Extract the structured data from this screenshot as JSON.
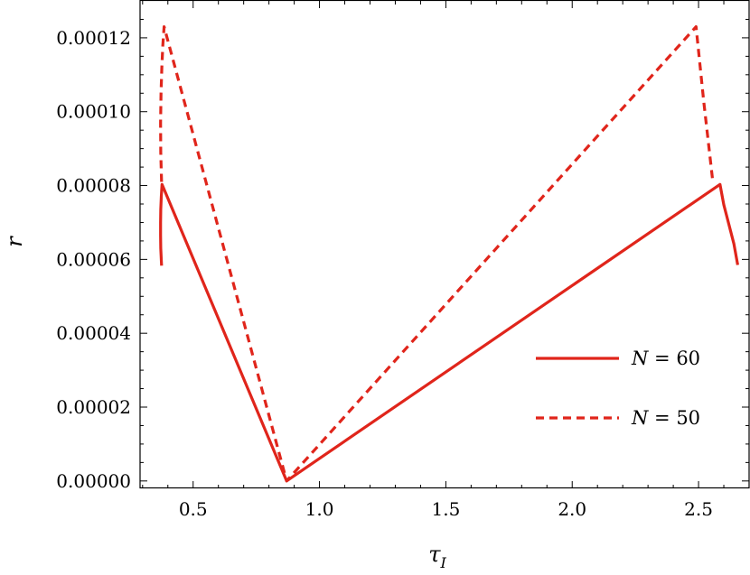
{
  "chart_data": {
    "type": "line",
    "xlabel": "τ",
    "xlabel_sub": "I",
    "ylabel": "r",
    "xlim": [
      0.29,
      2.7
    ],
    "ylim": [
      -2e-06,
      0.00013
    ],
    "xticks": [
      0.5,
      1.0,
      1.5,
      2.0,
      2.5
    ],
    "xtick_labels": [
      "0.5",
      "1.0",
      "1.5",
      "2.0",
      "2.5"
    ],
    "yticks": [
      0,
      2e-05,
      4e-05,
      6e-05,
      8e-05,
      0.0001,
      0.00012
    ],
    "ytick_labels": [
      "0.00000",
      "0.00002",
      "0.00004",
      "0.00006",
      "0.00008",
      "0.00010",
      "0.00012"
    ],
    "grid": false,
    "legend_position": "lower-right",
    "series": [
      {
        "name": "N = 60",
        "legend_var": "N",
        "legend_eq": " = 60",
        "style": "solid",
        "color": "#e0251b",
        "x": [
          0.375,
          0.372,
          0.371,
          0.371,
          0.372,
          0.374,
          0.377,
          0.87,
          2.585,
          2.6,
          2.62,
          2.64,
          2.655
        ],
        "y": [
          5.83e-05,
          6.3e-05,
          6.65e-05,
          7e-05,
          7.35e-05,
          7.7e-05,
          8.03e-05,
          0.0,
          8.03e-05,
          7.48e-05,
          6.95e-05,
          6.42e-05,
          5.85e-05
        ]
      },
      {
        "name": "N = 50",
        "legend_var": "N",
        "legend_eq": " = 50",
        "style": "dashed",
        "color": "#e0251b",
        "x": [
          0.375,
          0.372,
          0.371,
          0.373,
          0.376,
          0.38,
          0.385,
          0.87,
          2.49,
          2.52,
          2.555
        ],
        "y": [
          8.1e-05,
          8.9e-05,
          9.7e-05,
          0.000105,
          0.000112,
          0.000118,
          0.000123,
          0.0,
          0.000123,
          0.000103,
          8.2e-05
        ]
      }
    ]
  }
}
